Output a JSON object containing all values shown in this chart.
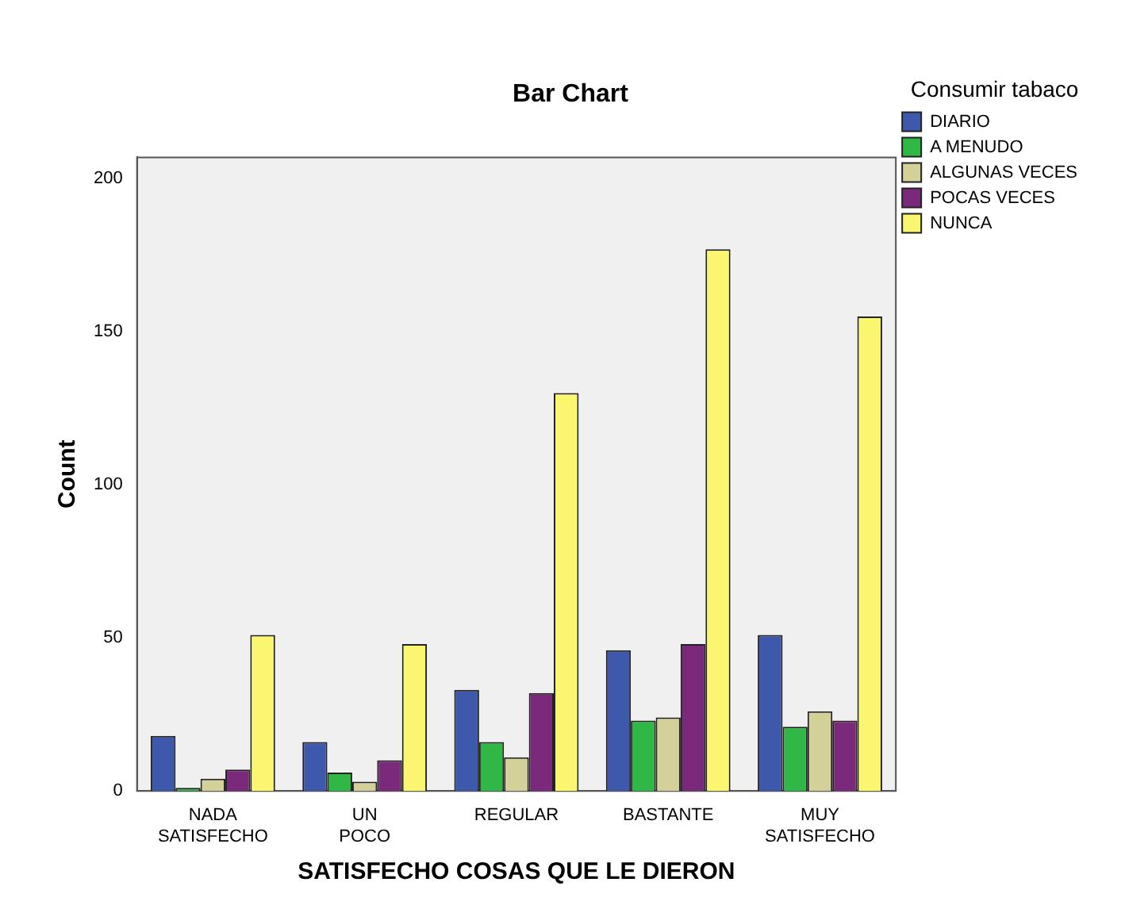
{
  "chart_data": {
    "type": "bar",
    "title": "Bar Chart",
    "xlabel": "SATISFECHO COSAS QUE LE DIERON",
    "ylabel": "Count",
    "legend_title": "Consumir tabaco",
    "categories": [
      "NADA SATISFECHO",
      "UN POCO",
      "REGULAR",
      "BASTANTE",
      "MUY SATISFECHO"
    ],
    "series": [
      {
        "name": "DIARIO",
        "color": "#3e58ac",
        "values": [
          18,
          16,
          33,
          46,
          51
        ]
      },
      {
        "name": "A MENUDO",
        "color": "#2fb846",
        "values": [
          1,
          6,
          16,
          23,
          21
        ]
      },
      {
        "name": "ALGUNAS VECES",
        "color": "#d4d09a",
        "values": [
          4,
          3,
          11,
          24,
          26
        ]
      },
      {
        "name": "POCAS VECES",
        "color": "#7b2a7b",
        "values": [
          7,
          10,
          32,
          48,
          23
        ]
      },
      {
        "name": "NUNCA",
        "color": "#fbf66f",
        "values": [
          51,
          48,
          130,
          177,
          155
        ]
      }
    ],
    "ylim": [
      0,
      207
    ],
    "yticks": [
      0,
      50,
      100,
      150,
      200
    ],
    "grid": false,
    "legend": "right"
  }
}
